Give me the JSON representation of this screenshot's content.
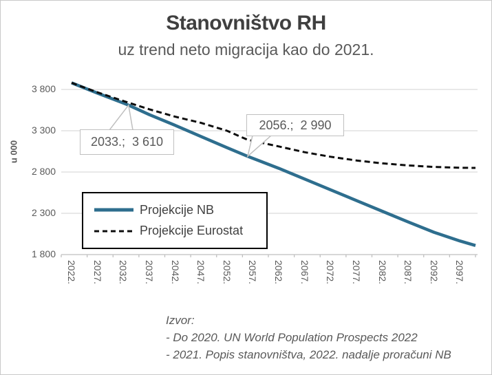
{
  "chart_data": {
    "type": "line",
    "title": "Stanovništvo RH",
    "subtitle": "uz trend neto migracija kao do 2021.",
    "ylabel": "u 000",
    "x_range": [
      2020,
      2100
    ],
    "y_range": [
      1800,
      3800
    ],
    "grid": "horizontal",
    "legend_position": "inside-left",
    "y_ticks": [
      {
        "value": 3800,
        "label": "3 800"
      },
      {
        "value": 3300,
        "label": "3 300"
      },
      {
        "value": 2800,
        "label": "2 800"
      },
      {
        "value": 2300,
        "label": "2 300"
      },
      {
        "value": 1800,
        "label": "1 800"
      }
    ],
    "x_ticks": [
      {
        "value": 2022,
        "label": "2022."
      },
      {
        "value": 2027,
        "label": "2027."
      },
      {
        "value": 2032,
        "label": "2032."
      },
      {
        "value": 2037,
        "label": "2037."
      },
      {
        "value": 2042,
        "label": "2042."
      },
      {
        "value": 2047,
        "label": "2047."
      },
      {
        "value": 2052,
        "label": "2052."
      },
      {
        "value": 2057,
        "label": "2057."
      },
      {
        "value": 2062,
        "label": "2062."
      },
      {
        "value": 2067,
        "label": "2067."
      },
      {
        "value": 2072,
        "label": "2072."
      },
      {
        "value": 2077,
        "label": "2077."
      },
      {
        "value": 2082,
        "label": "2082."
      },
      {
        "value": 2087,
        "label": "2087."
      },
      {
        "value": 2092,
        "label": "2092."
      },
      {
        "value": 2097,
        "label": "2097."
      }
    ],
    "series": [
      {
        "name": "Projekcije NB",
        "style": "solid",
        "color": "#2e6e8e",
        "width": 4.5,
        "points": [
          [
            2022,
            3880
          ],
          [
            2027,
            3755
          ],
          [
            2032,
            3635
          ],
          [
            2033,
            3610
          ],
          [
            2037,
            3495
          ],
          [
            2042,
            3365
          ],
          [
            2047,
            3230
          ],
          [
            2052,
            3095
          ],
          [
            2056,
            2990
          ],
          [
            2062,
            2845
          ],
          [
            2067,
            2715
          ],
          [
            2072,
            2585
          ],
          [
            2077,
            2455
          ],
          [
            2082,
            2325
          ],
          [
            2087,
            2195
          ],
          [
            2092,
            2070
          ],
          [
            2097,
            1965
          ],
          [
            2100,
            1910
          ]
        ]
      },
      {
        "name": "Projekcije Eurostat",
        "style": "dashed",
        "color": "#0d0d0d",
        "width": 3,
        "points": [
          [
            2022,
            3880
          ],
          [
            2027,
            3765
          ],
          [
            2032,
            3660
          ],
          [
            2037,
            3560
          ],
          [
            2042,
            3470
          ],
          [
            2047,
            3395
          ],
          [
            2052,
            3300
          ],
          [
            2056,
            3190
          ],
          [
            2062,
            3110
          ],
          [
            2067,
            3040
          ],
          [
            2072,
            2985
          ],
          [
            2077,
            2940
          ],
          [
            2082,
            2905
          ],
          [
            2087,
            2880
          ],
          [
            2092,
            2862
          ],
          [
            2097,
            2852
          ],
          [
            2100,
            2850
          ]
        ]
      }
    ],
    "annotations": [
      {
        "text": "2033.;  3 610",
        "year": 2033,
        "value": 3610
      },
      {
        "text": "2056.;  2 990",
        "year": 2056,
        "value": 2990
      }
    ],
    "colors": {
      "grid": "#d9d9d9",
      "axis": "#bfbfbf",
      "title": "#3f3f3f",
      "subtitle": "#595959",
      "tick_text": "#595959"
    }
  },
  "source": {
    "lines": [
      "Izvor:",
      "- Do 2020. UN World Population Prospects 2022",
      "- 2021. Popis stanovništva, 2022. nadalje proračuni NB"
    ]
  }
}
